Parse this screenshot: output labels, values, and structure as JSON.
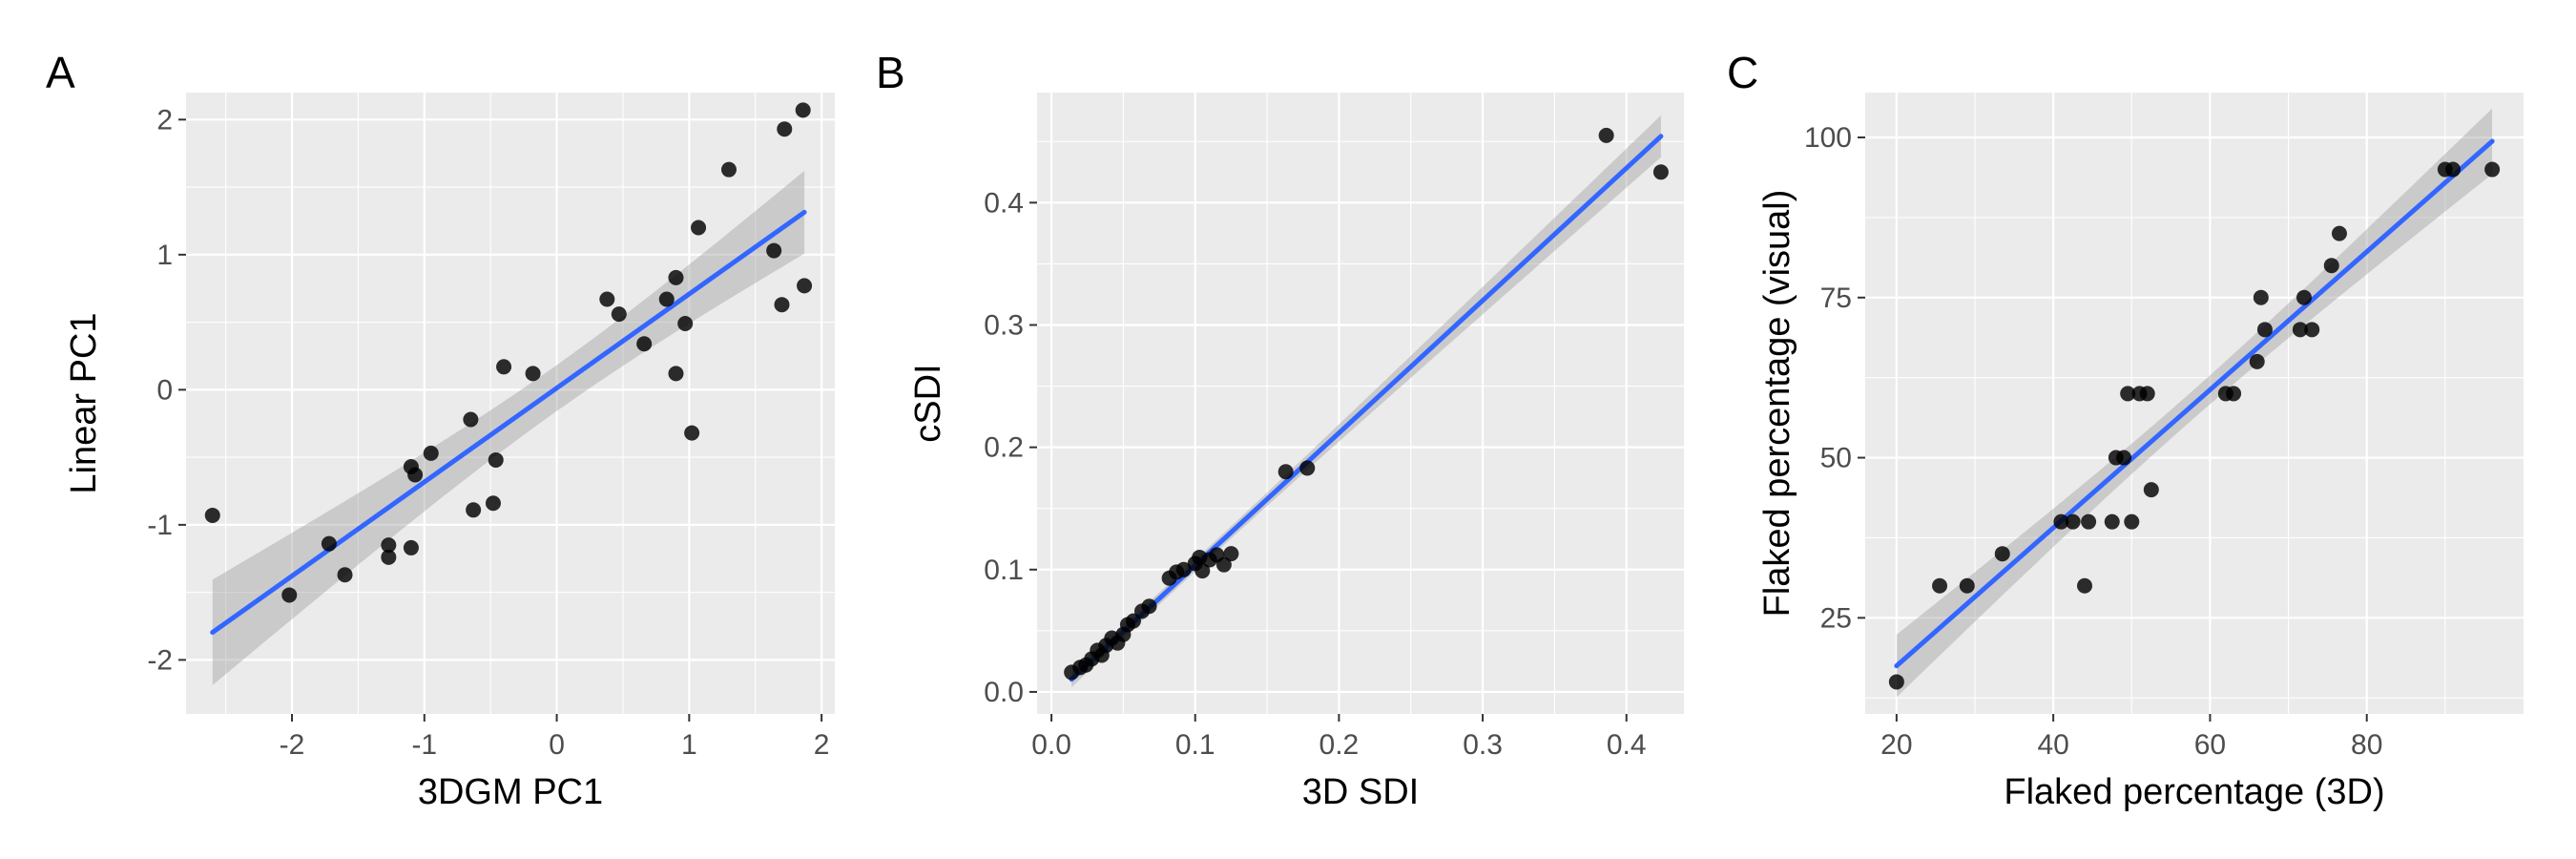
{
  "colors": {
    "panel_bg": "#ebebeb",
    "grid": "#ffffff",
    "point": "#000000",
    "fit_line": "#3366ff",
    "band": "#999999",
    "tick_text": "#4d4d4d"
  },
  "chart_data": [
    {
      "type": "scatter",
      "panel_label": "A",
      "xlabel": "3DGM PC1",
      "ylabel": "Linear PC1",
      "xlim": [
        -2.8,
        2.1
      ],
      "ylim": [
        -2.4,
        2.2
      ],
      "xticks": [
        -2,
        -1,
        0,
        1,
        2
      ],
      "yticks": [
        -2,
        -1,
        0,
        1,
        2
      ],
      "grid": true,
      "smooth": {
        "method": "linear",
        "se_band": true
      },
      "points": [
        [
          -2.6,
          -0.93
        ],
        [
          -2.02,
          -1.52
        ],
        [
          -1.72,
          -1.14
        ],
        [
          -1.6,
          -1.37
        ],
        [
          -1.27,
          -1.15
        ],
        [
          -1.27,
          -1.24
        ],
        [
          -1.1,
          -1.17
        ],
        [
          -1.1,
          -0.57
        ],
        [
          -1.07,
          -0.63
        ],
        [
          -0.95,
          -0.47
        ],
        [
          -0.65,
          -0.22
        ],
        [
          -0.63,
          -0.89
        ],
        [
          -0.48,
          -0.84
        ],
        [
          -0.46,
          -0.52
        ],
        [
          -0.4,
          0.17
        ],
        [
          -0.18,
          0.12
        ],
        [
          0.38,
          0.67
        ],
        [
          0.47,
          0.56
        ],
        [
          0.66,
          0.34
        ],
        [
          0.83,
          0.67
        ],
        [
          0.9,
          0.83
        ],
        [
          0.9,
          0.12
        ],
        [
          0.97,
          0.49
        ],
        [
          1.02,
          -0.32
        ],
        [
          1.07,
          1.2
        ],
        [
          1.3,
          1.63
        ],
        [
          1.64,
          1.03
        ],
        [
          1.7,
          0.63
        ],
        [
          1.72,
          1.93
        ],
        [
          1.86,
          2.07
        ],
        [
          1.87,
          0.77
        ]
      ]
    },
    {
      "type": "scatter",
      "panel_label": "B",
      "xlabel": "3D SDI",
      "ylabel": "cSDI",
      "xlim": [
        -0.01,
        0.44
      ],
      "ylim": [
        -0.018,
        0.49
      ],
      "xticks": [
        0.0,
        0.1,
        0.2,
        0.3,
        0.4
      ],
      "yticks": [
        0.0,
        0.1,
        0.2,
        0.3,
        0.4
      ],
      "grid": true,
      "smooth": {
        "method": "linear",
        "se_band": true
      },
      "points": [
        [
          0.014,
          0.016
        ],
        [
          0.02,
          0.02
        ],
        [
          0.024,
          0.022
        ],
        [
          0.028,
          0.027
        ],
        [
          0.032,
          0.034
        ],
        [
          0.035,
          0.03
        ],
        [
          0.038,
          0.038
        ],
        [
          0.042,
          0.044
        ],
        [
          0.046,
          0.04
        ],
        [
          0.05,
          0.047
        ],
        [
          0.053,
          0.055
        ],
        [
          0.057,
          0.058
        ],
        [
          0.063,
          0.066
        ],
        [
          0.068,
          0.07
        ],
        [
          0.082,
          0.093
        ],
        [
          0.087,
          0.098
        ],
        [
          0.092,
          0.1
        ],
        [
          0.1,
          0.105
        ],
        [
          0.103,
          0.11
        ],
        [
          0.105,
          0.099
        ],
        [
          0.11,
          0.108
        ],
        [
          0.115,
          0.112
        ],
        [
          0.12,
          0.104
        ],
        [
          0.125,
          0.113
        ],
        [
          0.163,
          0.18
        ],
        [
          0.178,
          0.183
        ],
        [
          0.386,
          0.455
        ],
        [
          0.424,
          0.425
        ]
      ]
    },
    {
      "type": "scatter",
      "panel_label": "C",
      "xlabel": "Flaked percentage (3D)",
      "ylabel": "Flaked percentage (visual)",
      "xlim": [
        16,
        100
      ],
      "ylim": [
        10,
        107
      ],
      "xticks": [
        20,
        40,
        60,
        80
      ],
      "yticks": [
        25,
        50,
        75,
        100
      ],
      "grid": true,
      "smooth": {
        "method": "linear",
        "se_band": true
      },
      "points": [
        [
          20,
          15
        ],
        [
          25.5,
          30
        ],
        [
          29,
          30
        ],
        [
          33.5,
          35
        ],
        [
          41,
          40
        ],
        [
          42.5,
          40
        ],
        [
          44,
          30
        ],
        [
          44.5,
          40
        ],
        [
          47.5,
          40
        ],
        [
          48,
          50
        ],
        [
          49,
          50
        ],
        [
          49.5,
          60
        ],
        [
          50,
          40
        ],
        [
          51,
          60
        ],
        [
          52,
          60
        ],
        [
          52.5,
          45
        ],
        [
          62,
          60
        ],
        [
          63,
          60
        ],
        [
          66,
          65
        ],
        [
          66.5,
          75
        ],
        [
          67,
          70
        ],
        [
          71.5,
          70
        ],
        [
          72,
          75
        ],
        [
          73,
          70
        ],
        [
          75.5,
          80
        ],
        [
          76.5,
          85
        ],
        [
          90,
          95
        ],
        [
          91,
          95
        ],
        [
          96,
          95
        ]
      ]
    }
  ]
}
